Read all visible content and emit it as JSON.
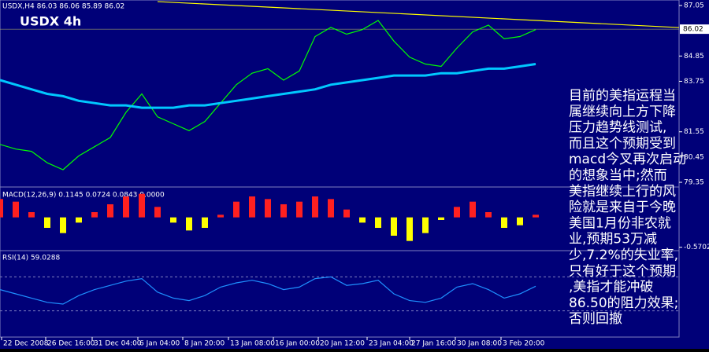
{
  "chart_data": [
    {
      "type": "line",
      "title": "USDX,H4  86.03 86.06 85.89 86.02",
      "subtitle": "USDX 4h",
      "x": [
        0,
        1,
        2,
        3,
        4,
        5,
        6,
        7,
        8,
        9,
        10,
        11,
        12,
        13,
        14,
        15,
        16,
        17,
        18,
        19,
        20,
        21,
        22,
        23,
        24,
        25,
        26,
        27,
        28,
        29,
        30,
        31,
        32,
        33,
        34
      ],
      "series": [
        {
          "color": "#00ff00",
          "values": [
            81.0,
            80.8,
            80.7,
            80.2,
            79.9,
            80.5,
            80.9,
            81.3,
            82.4,
            83.2,
            82.2,
            81.9,
            81.6,
            82.0,
            82.8,
            83.6,
            84.1,
            84.3,
            83.8,
            84.2,
            85.7,
            86.1,
            85.8,
            86.0,
            86.4,
            85.5,
            84.8,
            84.5,
            84.4,
            85.2,
            85.9,
            86.2,
            85.6,
            85.7,
            86.0
          ]
        },
        {
          "color": "#00c8ff",
          "values": [
            83.8,
            83.6,
            83.4,
            83.2,
            83.1,
            82.9,
            82.8,
            82.7,
            82.7,
            82.6,
            82.6,
            82.6,
            82.7,
            82.7,
            82.8,
            82.9,
            83.0,
            83.1,
            83.2,
            83.3,
            83.4,
            83.6,
            83.7,
            83.8,
            83.9,
            84.0,
            84.0,
            84.0,
            84.1,
            84.1,
            84.2,
            84.3,
            84.3,
            84.4,
            84.5
          ]
        }
      ],
      "trendline": {
        "x": [
          10,
          43.1
        ],
        "values": [
          87.22,
          86.09
        ],
        "color": "#ffff00"
      },
      "last_price": 86.02,
      "xlim": [
        0,
        43.1
      ],
      "xticks": [
        {
          "value": 0.1,
          "label": "22 Dec 2008"
        },
        {
          "value": 2.9,
          "label": "26 Dec 16:00"
        },
        {
          "value": 5.85,
          "label": "31 Dec 04:00"
        },
        {
          "value": 8.75,
          "label": "6 Jan 04:00"
        },
        {
          "value": 11.6,
          "label": "8 Jan 20:00"
        },
        {
          "value": 14.5,
          "label": "13 Jan 08:00"
        },
        {
          "value": 17.35,
          "label": "16 Jan 00:00"
        },
        {
          "value": 20.2,
          "label": "20 Jan 12:00"
        },
        {
          "value": 23.3,
          "label": "23 Jan 04:00"
        },
        {
          "value": 26,
          "label": "27 Jan 16:00"
        },
        {
          "value": 28.9,
          "label": "30 Jan 08:00"
        },
        {
          "value": 31.8,
          "label": "3 Feb 20:00"
        }
      ],
      "ylim": [
        79.18,
        87.29
      ],
      "yticks": [
        87.05,
        84.85,
        83.75,
        81.55,
        80.45,
        79.35
      ]
    },
    {
      "type": "bar",
      "title": "MACD(12,26,9) 0.1145 0.0724 0.0843 0.0000",
      "x": [
        0,
        1,
        2,
        3,
        4,
        5,
        6,
        7,
        8,
        9,
        10,
        11,
        12,
        13,
        14,
        15,
        16,
        17,
        18,
        19,
        20,
        21,
        22,
        23,
        24,
        25,
        26,
        27,
        28,
        29,
        30,
        31,
        32,
        33,
        34
      ],
      "values": [
        0.35,
        0.3,
        0.1,
        -0.2,
        -0.3,
        -0.1,
        0.1,
        0.25,
        0.4,
        0.45,
        0.2,
        -0.1,
        -0.25,
        -0.2,
        0.05,
        0.3,
        0.4,
        0.35,
        0.25,
        0.3,
        0.4,
        0.35,
        0.15,
        -0.1,
        -0.2,
        -0.35,
        -0.45,
        -0.3,
        -0.05,
        0.2,
        0.3,
        0.1,
        -0.2,
        -0.15,
        0.05
      ],
      "up_color": "#ff2020",
      "down_color": "#ffff00",
      "xlim": [
        0,
        43.1
      ],
      "ylim": [
        -0.62,
        0.55
      ],
      "yticks": [
        -0.5702
      ]
    },
    {
      "type": "line",
      "title": "RSI(14) 59.0288",
      "x": [
        0,
        1,
        2,
        3,
        4,
        5,
        6,
        7,
        8,
        9,
        10,
        11,
        12,
        13,
        14,
        15,
        16,
        17,
        18,
        19,
        20,
        21,
        22,
        23,
        24,
        25,
        26,
        27,
        28,
        29,
        30,
        31,
        32,
        33,
        34
      ],
      "series": [
        {
          "color": "#1e90ff",
          "values": [
            55,
            50,
            45,
            40,
            38,
            48,
            55,
            60,
            65,
            68,
            52,
            45,
            42,
            48,
            58,
            63,
            66,
            62,
            55,
            58,
            68,
            70,
            60,
            62,
            66,
            50,
            42,
            40,
            45,
            58,
            62,
            55,
            45,
            50,
            59
          ]
        }
      ],
      "levels": [
        30,
        70
      ],
      "xlim": [
        0,
        43.1
      ],
      "ylim": [
        0,
        100
      ]
    }
  ],
  "annotation": {
    "lines": [
      "目前的美指运程当",
      "属继续向上方下降",
      "压力趋势线测试,",
      "而且这个预期受到",
      "macd今叉再次启动",
      "的想象当中;然而",
      "美指继续上行的风",
      "险就是来自于今晚",
      "美国1月份非农就",
      "业,预期53万减",
      "少,7.2%的失业率,",
      "只有好于这个预期",
      ",美指才能冲破",
      "86.50的阻力效果;",
      "否则回撤"
    ]
  }
}
